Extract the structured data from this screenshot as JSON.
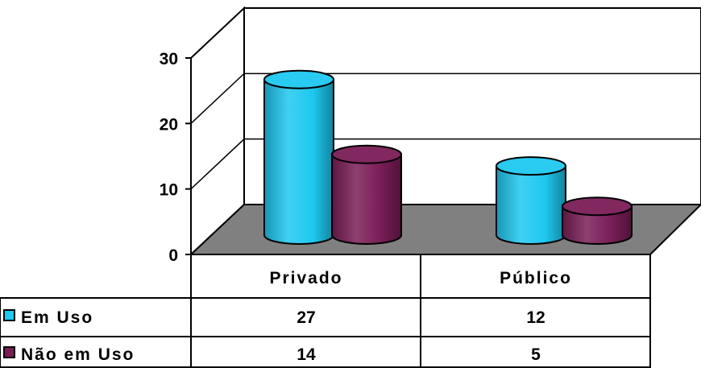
{
  "chart_data": {
    "type": "bar",
    "categories": [
      "Privado",
      "Público"
    ],
    "series": [
      {
        "name": "Em Uso",
        "values": [
          27,
          12
        ],
        "color": "#1EC8F0"
      },
      {
        "name": "Não em Uso",
        "values": [
          14,
          5
        ],
        "color": "#7A1D57"
      }
    ],
    "ylim": [
      0,
      30
    ],
    "yticks": [
      "0",
      "10",
      "20",
      "30"
    ],
    "title": "",
    "xlabel": "",
    "ylabel": "",
    "grid": true,
    "floor_color": "#808080",
    "legend": "data-table",
    "data_table": {
      "rows": [
        {
          "label": "Em Uso",
          "cells": [
            "27",
            "12"
          ]
        },
        {
          "label": "Não em Uso",
          "cells": [
            "14",
            "5"
          ]
        }
      ]
    }
  }
}
